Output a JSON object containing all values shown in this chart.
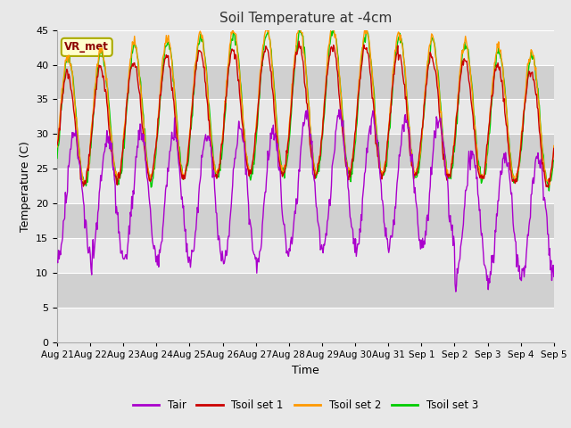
{
  "title": "Soil Temperature at -4cm",
  "xlabel": "Time",
  "ylabel": "Temperature (C)",
  "ylim": [
    0,
    45
  ],
  "yticks": [
    0,
    5,
    10,
    15,
    20,
    25,
    30,
    35,
    40,
    45
  ],
  "background_color": "#e8e8e8",
  "plot_bg_color": "#dcdcdc",
  "grid_color": "#ffffff",
  "colors": {
    "Tair": "#aa00cc",
    "Tsoil1": "#cc0000",
    "Tsoil2": "#ff9900",
    "Tsoil3": "#00cc00"
  },
  "legend_labels": [
    "Tair",
    "Tsoil set 1",
    "Tsoil set 2",
    "Tsoil set 3"
  ],
  "date_labels": [
    "Aug 21",
    "Aug 22",
    "Aug 23",
    "Aug 24",
    "Aug 25",
    "Aug 26",
    "Aug 27",
    "Aug 28",
    "Aug 29",
    "Aug 30",
    "Aug 31",
    "Sep 1",
    "Sep 2",
    "Sep 3",
    "Sep 4",
    "Sep 5"
  ],
  "n_days": 15,
  "pts_per_day": 48,
  "annotation_text": "VR_met",
  "annotation_bg": "#ffffcc",
  "annotation_border": "#aaaa00",
  "figsize": [
    6.4,
    4.8
  ],
  "dpi": 100
}
